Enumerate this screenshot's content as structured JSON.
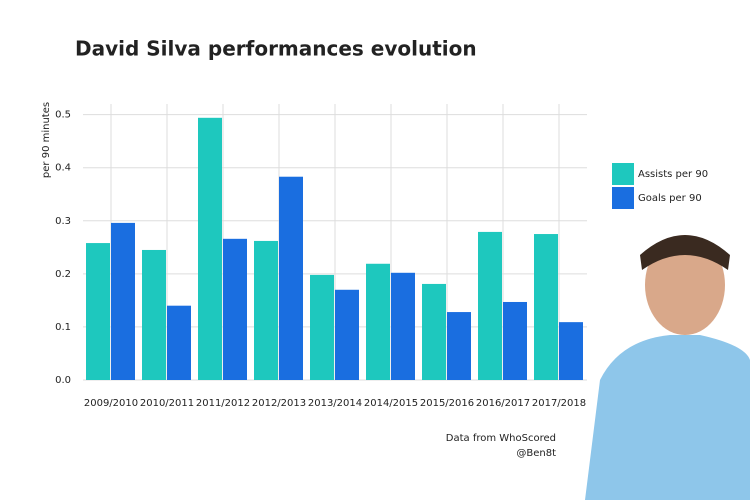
{
  "chart_data": {
    "type": "bar",
    "title": "David Silva performances evolution",
    "y_label": "per 90 minutes",
    "categories": [
      "2009/2010",
      "2010/2011",
      "2011/2012",
      "2012/2013",
      "2013/2014",
      "2014/2015",
      "2015/2016",
      "2016/2017",
      "2017/2018"
    ],
    "series": [
      {
        "name": "Assists per 90",
        "color": "#1ec8be",
        "values": [
          0.258,
          0.245,
          0.494,
          0.262,
          0.198,
          0.219,
          0.181,
          0.279,
          0.275
        ]
      },
      {
        "name": "Goals per 90",
        "color": "#1a6ee0",
        "values": [
          0.296,
          0.14,
          0.266,
          0.383,
          0.17,
          0.202,
          0.128,
          0.147,
          0.109
        ]
      }
    ],
    "ylim": [
      0,
      0.52
    ],
    "yticks": [
      {
        "value": 0,
        "label": "0.0"
      },
      0.1,
      0.2,
      0.3,
      0.4,
      0.5
    ],
    "grid": true,
    "legend": "right",
    "caption": [
      "Data from WhoScored",
      "@Ben8t"
    ]
  }
}
